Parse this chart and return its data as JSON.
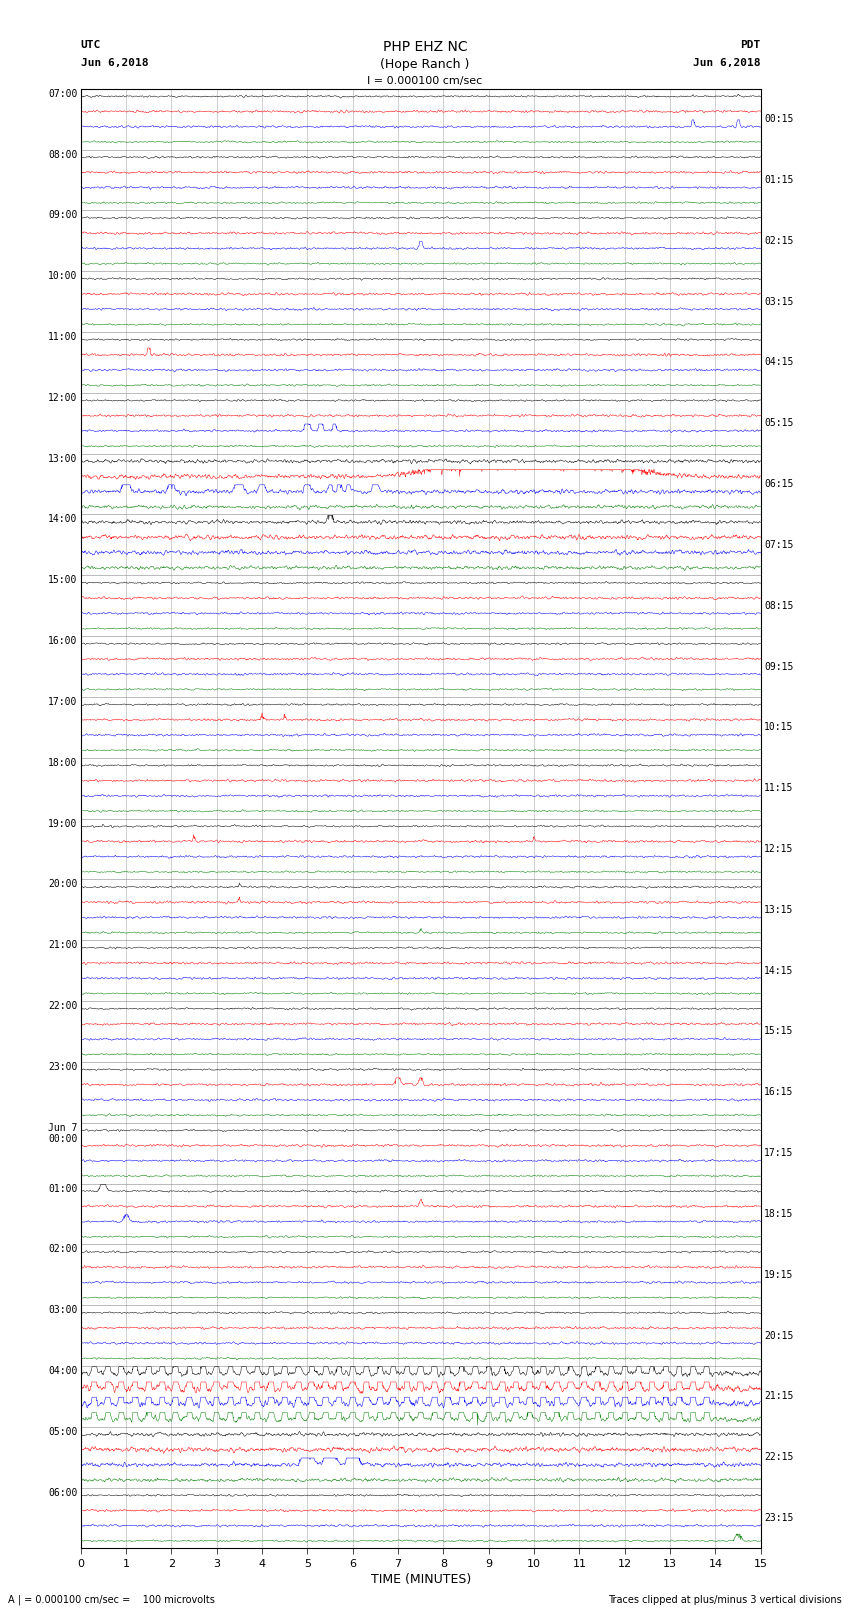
{
  "title_line1": "PHP EHZ NC",
  "title_line2": "(Hope Ranch )",
  "scale_label": "I = 0.000100 cm/sec",
  "footnote": "A | = 0.000100 cm/sec =    100 microvolts",
  "footnote2": "Traces clipped at plus/minus 3 vertical divisions",
  "xlabel": "TIME (MINUTES)",
  "x_min": 0,
  "x_max": 15,
  "x_ticks": [
    0,
    1,
    2,
    3,
    4,
    5,
    6,
    7,
    8,
    9,
    10,
    11,
    12,
    13,
    14,
    15
  ],
  "left_times": [
    "07:00",
    "08:00",
    "09:00",
    "10:00",
    "11:00",
    "12:00",
    "13:00",
    "14:00",
    "15:00",
    "16:00",
    "17:00",
    "18:00",
    "19:00",
    "20:00",
    "21:00",
    "22:00",
    "23:00",
    "Jun 7\n00:00",
    "01:00",
    "02:00",
    "03:00",
    "04:00",
    "05:00",
    "06:00"
  ],
  "right_times": [
    "00:15",
    "01:15",
    "02:15",
    "03:15",
    "04:15",
    "05:15",
    "06:15",
    "07:15",
    "08:15",
    "09:15",
    "10:15",
    "11:15",
    "12:15",
    "13:15",
    "14:15",
    "15:15",
    "16:15",
    "17:15",
    "18:15",
    "19:15",
    "20:15",
    "21:15",
    "22:15",
    "23:15"
  ],
  "n_hours": 24,
  "traces_per_hour": 4,
  "colors_per_group": [
    "black",
    "red",
    "blue",
    "green"
  ],
  "bg_color": "white",
  "base_noise": 0.06,
  "clip_level": 0.45
}
